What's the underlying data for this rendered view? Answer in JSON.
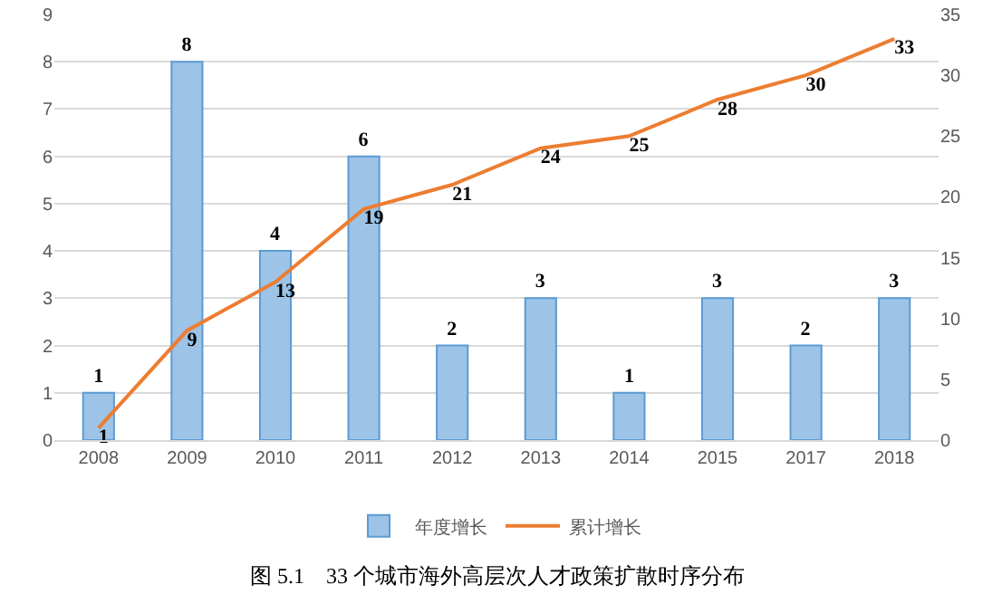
{
  "chart_data": {
    "type": "bar",
    "title": "图 5.1　33 个城市海外高层次人才政策扩散时序分布",
    "categories": [
      "2008",
      "2009",
      "2010",
      "2011",
      "2012",
      "2013",
      "2014",
      "2015",
      "2017",
      "2018"
    ],
    "series": [
      {
        "name": "年度增长",
        "color": "#9dc3e6",
        "values": [
          1,
          8,
          4,
          6,
          2,
          3,
          1,
          3,
          2,
          3
        ]
      },
      {
        "name": "累计增长",
        "type": "line",
        "axis": "y2",
        "color": "#ed7d31",
        "values": [
          1,
          9,
          13,
          19,
          21,
          24,
          25,
          28,
          30,
          33
        ]
      }
    ],
    "ylim": [
      0,
      9
    ],
    "yticks": [
      0,
      1,
      2,
      3,
      4,
      5,
      6,
      7,
      8,
      9
    ],
    "y2lim": [
      0,
      35
    ],
    "y2ticks": [
      0,
      5,
      10,
      15,
      20,
      25,
      30,
      35
    ],
    "grid": "y",
    "legend": "bottom",
    "data_labels": true,
    "marker": "none",
    "line_style": "solid"
  }
}
